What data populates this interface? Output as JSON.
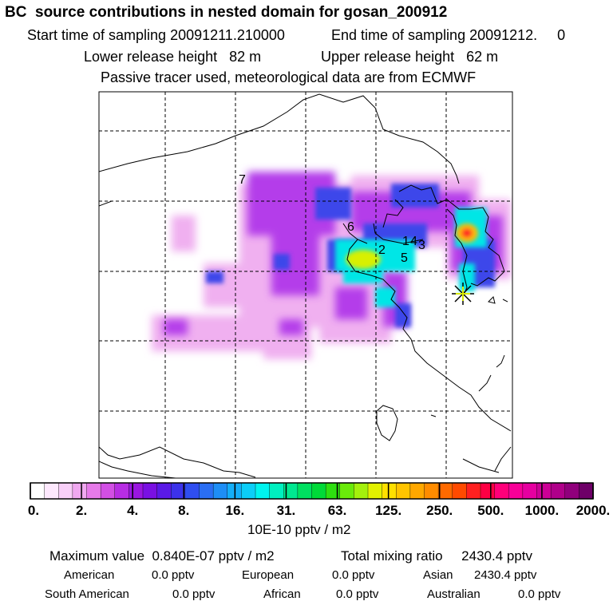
{
  "header": {
    "title": "BC  source contributions in nested domain for gosan_200912",
    "start_time": "Start time of sampling 20091211.210000",
    "end_time": "End time of sampling 20091212.     0",
    "lower_release": "Lower release height   82 m",
    "upper_release": "Upper release height   62 m",
    "tracer_note": "Passive tracer used, meteorological data are from ECMWF"
  },
  "map": {
    "source_labels": [
      {
        "id": "1",
        "text": "1"
      },
      {
        "id": "2",
        "text": "2"
      },
      {
        "id": "4",
        "text": "4"
      },
      {
        "id": "3",
        "text": "3"
      },
      {
        "id": "5",
        "text": "5"
      },
      {
        "id": "6",
        "text": "6"
      },
      {
        "id": "7",
        "text": "7"
      }
    ],
    "receptor_marker": "star-icon"
  },
  "colorbar": {
    "tick_labels": [
      "0.",
      "2.",
      "4.",
      "8.",
      "16.",
      "31.",
      "63.",
      "125.",
      "250.",
      "500.",
      "1000.",
      "2000."
    ],
    "colors": [
      "#ffffff",
      "#fde8fd",
      "#f8cff8",
      "#f0a8f0",
      "#e67ae9",
      "#d24fe5",
      "#b72de3",
      "#9a16e0",
      "#7a10e3",
      "#5a1ae6",
      "#3c32ea",
      "#2f4ef0",
      "#2a6ef3",
      "#1e8ef6",
      "#14aef8",
      "#0ccef8",
      "#00f4ef",
      "#00f0c0",
      "#00e890",
      "#00e060",
      "#00da38",
      "#2edf10",
      "#6aea0a",
      "#a4f00c",
      "#e2f200",
      "#ffe000",
      "#ffc400",
      "#ffa800",
      "#ff8c00",
      "#ff6a00",
      "#ff4a00",
      "#ff2020",
      "#ff0044",
      "#ff007a",
      "#f80098",
      "#e600a0",
      "#cc0096",
      "#b0008a",
      "#90007c",
      "#6e0068"
    ],
    "unit_label": "10E-10 pptv / m2"
  },
  "summary": {
    "max_value": "Maximum value  0.840E-07 pptv / m2",
    "total_mixing": "Total mixing ratio     2430.4 pptv",
    "contributions": [
      {
        "name": "American",
        "value": "0.0 pptv"
      },
      {
        "name": "European",
        "value": "0.0 pptv"
      },
      {
        "name": "Asian",
        "value": "2430.4 pptv"
      },
      {
        "name": "South American",
        "value": "0.0 pptv"
      },
      {
        "name": "African",
        "value": "0.0 pptv"
      },
      {
        "name": "Australian",
        "value": "0.0 pptv"
      }
    ]
  }
}
